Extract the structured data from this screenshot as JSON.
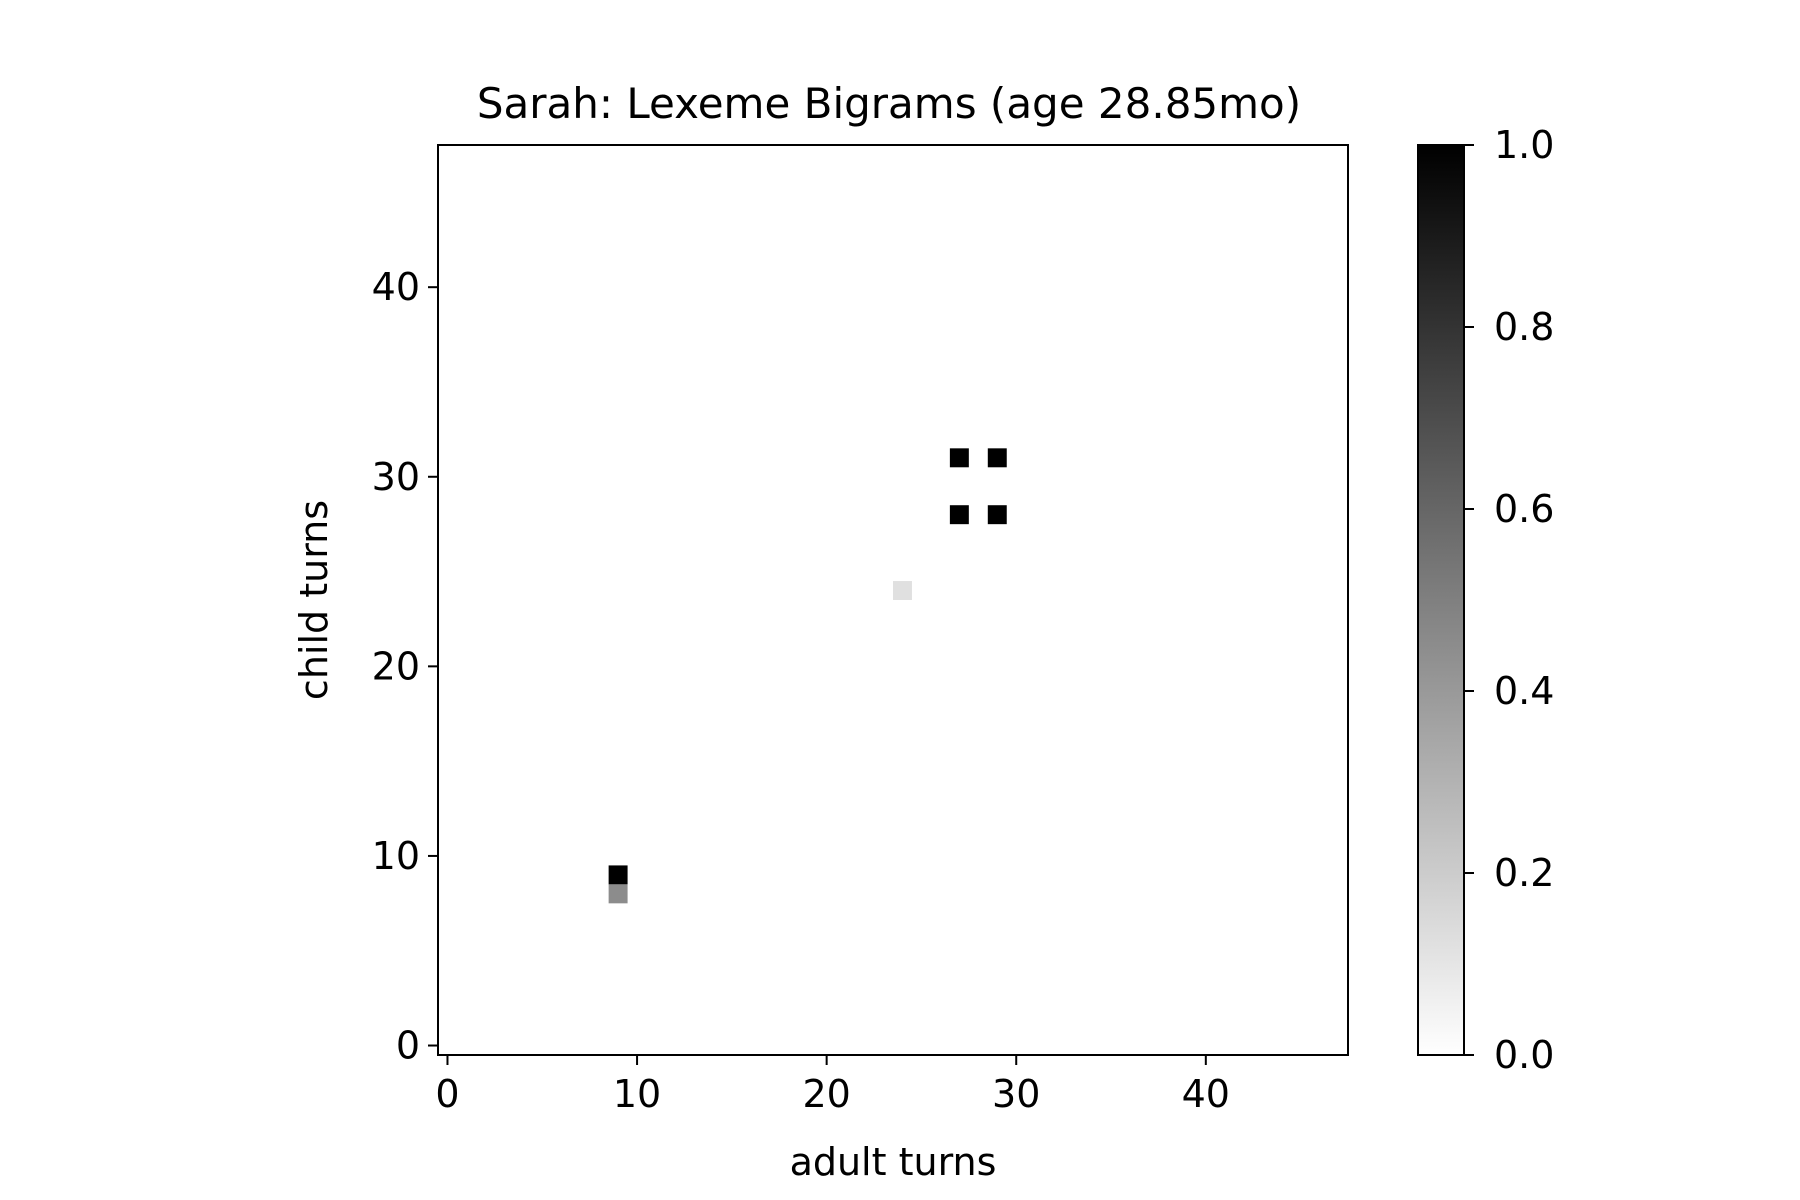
{
  "chart_data": {
    "type": "heatmap",
    "title": "Sarah: Lexeme Bigrams (age 28.85mo)",
    "xlabel": "adult turns",
    "ylabel": "child turns",
    "xlim": [
      -0.5,
      47.5
    ],
    "ylim": [
      -0.5,
      47.5
    ],
    "x_ticks": [
      0,
      10,
      20,
      30,
      40
    ],
    "y_ticks": [
      0,
      10,
      20,
      30,
      40
    ],
    "colormap": "gray_r",
    "colorbar": {
      "range": [
        0.0,
        1.0
      ],
      "ticks": [
        "0.0",
        "0.2",
        "0.4",
        "0.6",
        "0.8",
        "1.0"
      ]
    },
    "grid": false,
    "cells": [
      {
        "x": 9,
        "y": 9,
        "value": 1.0
      },
      {
        "x": 9,
        "y": 8,
        "value": 0.45
      },
      {
        "x": 24,
        "y": 24,
        "value": 0.12
      },
      {
        "x": 27,
        "y": 28,
        "value": 1.0
      },
      {
        "x": 29,
        "y": 28,
        "value": 1.0
      },
      {
        "x": 27,
        "y": 31,
        "value": 1.0
      },
      {
        "x": 29,
        "y": 31,
        "value": 1.0
      }
    ]
  }
}
